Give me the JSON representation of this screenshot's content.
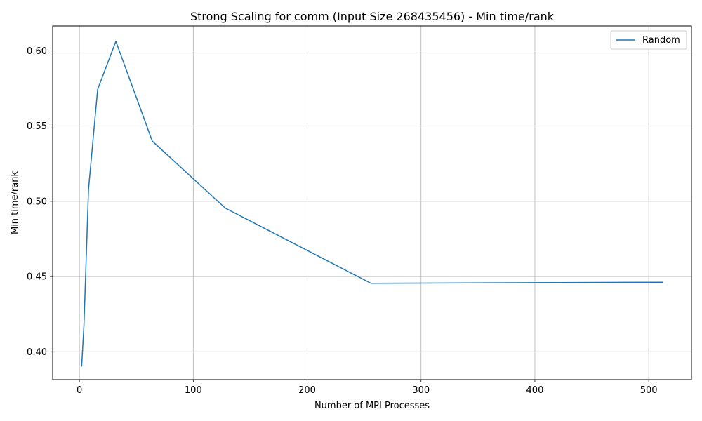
{
  "chart_data": {
    "type": "line",
    "title": "Strong Scaling for comm (Input Size 268435456) - Min time/rank",
    "xlabel": "Number of MPI Processes",
    "ylabel": "Min time/rank",
    "xlim": [
      -23.5,
      537.5
    ],
    "ylim": [
      0.3815,
      0.6165
    ],
    "xticks": [
      0,
      100,
      200,
      300,
      400,
      500
    ],
    "xtick_labels": [
      "0",
      "100",
      "200",
      "300",
      "400",
      "500"
    ],
    "yticks": [
      0.4,
      0.45,
      0.5,
      0.55,
      0.6
    ],
    "ytick_labels": [
      "0.40",
      "0.45",
      "0.50",
      "0.55",
      "0.60"
    ],
    "grid": true,
    "legend_position": "top-right",
    "series": [
      {
        "name": "Random",
        "color": "#1f77b4",
        "x": [
          2,
          4,
          8,
          16,
          32,
          64,
          128,
          256,
          512
        ],
        "y": [
          0.3905,
          0.418,
          0.508,
          0.5743,
          0.6063,
          0.54,
          0.4955,
          0.4455,
          0.4462
        ]
      }
    ]
  }
}
